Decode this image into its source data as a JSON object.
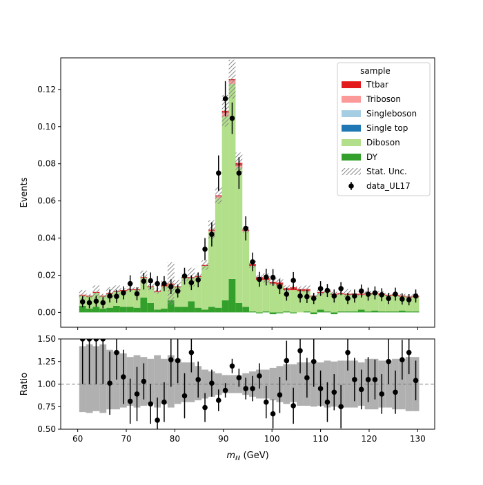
{
  "chart_data": {
    "type": "bar",
    "x_bin_centers": [
      61,
      62.4,
      63.8,
      65.2,
      66.6,
      68,
      69.4,
      70.8,
      72.2,
      73.6,
      75,
      76.4,
      77.8,
      79.2,
      80.6,
      82,
      83.4,
      84.8,
      86.2,
      87.6,
      89,
      90.4,
      91.8,
      93.2,
      94.6,
      96,
      97.4,
      98.8,
      100.2,
      101.6,
      103,
      104.4,
      105.8,
      107.2,
      108.6,
      110,
      111.4,
      112.8,
      114.2,
      115.6,
      117,
      118.4,
      119.8,
      121.2,
      122.6,
      124,
      125.4,
      126.8,
      128.2,
      129.6
    ],
    "bin_width": 1.4,
    "xlim": [
      56.5,
      133.5
    ],
    "colors": {
      "Ttbar": "#e31a1c",
      "Triboson": "#fb9a99",
      "Singleboson": "#a6cee3",
      "Single top": "#1f78b4",
      "Diboson": "#b2df8a",
      "DY": "#33a02c",
      "band": "#b0b0b0",
      "data": "#000000"
    },
    "top_panel": {
      "ylabel": "Events",
      "ylim": [
        -0.008,
        0.137
      ],
      "yticks": [
        "0.00",
        "0.02",
        "0.04",
        "0.06",
        "0.08",
        "0.10",
        "0.12"
      ],
      "ytick_values": [
        0,
        0.02,
        0.04,
        0.06,
        0.08,
        0.1,
        0.12
      ],
      "legend_title": "sample",
      "legend_position": "top-right",
      "legend_entries": [
        "Ttbar",
        "Triboson",
        "Singleboson",
        "Single top",
        "Diboson",
        "DY",
        "Stat. Unc.",
        "data_UL17"
      ],
      "dy": [
        0.0035,
        0.002,
        0.003,
        0.002,
        0.0025,
        0.0035,
        0.003,
        0.003,
        0.0025,
        0.008,
        0.005,
        0.0015,
        0.002,
        0.0065,
        0.003,
        0.003,
        0.006,
        0.0025,
        0.0015,
        0.003,
        0.0025,
        0.0065,
        0.018,
        0.005,
        0.003,
        0.0005,
        -0.0005,
        0.0005,
        -0.001,
        -0.0005,
        0.0005,
        -0.0005,
        0,
        0.0005,
        -0.001,
        0.0015,
        0.0005,
        -0.001,
        0.0005,
        0.0005,
        0.0005,
        0.0015,
        0.0005,
        0.001,
        0.0005,
        0.0005,
        0.0005,
        0.001,
        0.0005,
        0.0005
      ],
      "diboson": [
        0.0055,
        0.0065,
        0.0075,
        0.0065,
        0.0075,
        0.0075,
        0.0085,
        0.009,
        0.0095,
        0.0105,
        0.0085,
        0.0095,
        0.012,
        0.0085,
        0.0105,
        0.0155,
        0.0125,
        0.0165,
        0.0235,
        0.0405,
        0.059,
        0.099,
        0.105,
        0.073,
        0.0405,
        0.0245,
        0.018,
        0.017,
        0.0165,
        0.015,
        0.0115,
        0.0125,
        0.0115,
        0.011,
        0.0095,
        0.009,
        0.0105,
        0.0105,
        0.0095,
        0.009,
        0.009,
        0.008,
        0.0095,
        0.009,
        0.009,
        0.0085,
        0.0085,
        0.0075,
        0.0075,
        0.008
      ],
      "ttbar": [
        0.0005,
        0.0005,
        0.0005,
        0.0005,
        0.0005,
        0.0005,
        0.0005,
        0.0005,
        0.0005,
        0.0005,
        0.0005,
        0.0005,
        0.001,
        0.0005,
        0.0005,
        0.0005,
        0.0005,
        0.0005,
        0.0005,
        0.0005,
        0.0005,
        0.001,
        0.0005,
        0.0015,
        0.0005,
        0.001,
        0.0015,
        0.001,
        0.001,
        0.0015,
        0.001,
        0.0015,
        0.001,
        0.001,
        0.0005,
        0.0005,
        0.0005,
        0.0005,
        0.0005,
        0.0005,
        0.0005,
        0.0005,
        0.0005,
        0.0005,
        0.0005,
        0.0005,
        0.0005,
        0.0005,
        0.0005,
        0.0005
      ],
      "triboson": [
        0,
        0,
        0,
        0,
        0,
        0,
        0,
        0,
        0,
        0,
        0,
        0,
        0,
        0,
        0,
        0,
        0,
        0,
        0,
        0.0005,
        0.001,
        0.002,
        0.002,
        0.001,
        0.0005,
        0,
        0,
        0,
        0,
        0,
        0,
        0,
        0,
        0,
        0,
        0,
        0,
        0,
        0,
        0,
        0,
        0,
        0,
        0,
        0,
        0,
        0,
        0,
        0,
        0
      ],
      "stat_unc": [
        0.0025,
        0.001,
        0.0035,
        0.001,
        0.003,
        0.003,
        0.001,
        0.0015,
        0.001,
        0.0035,
        0.002,
        0.0015,
        0.002,
        0.0115,
        0.0035,
        0.002,
        0.005,
        0.0015,
        0.0025,
        0.005,
        0.0045,
        0.0085,
        0.0105,
        0.0055,
        0.0015,
        0.002,
        0.001,
        0.0025,
        0.002,
        0.0025,
        0.0015,
        0.001,
        0.0015,
        0.002,
        0.001,
        0.0015,
        0.0015,
        0.001,
        0.001,
        0.0025,
        0.0005,
        0.0015,
        0.001,
        0.001,
        0.0015,
        0.001,
        0.001,
        0.001,
        0.0005,
        0.001
      ],
      "data_y": [
        0.0057,
        0.0052,
        0.006,
        0.0052,
        0.0088,
        0.0086,
        0.0105,
        0.0155,
        0.01,
        0.0168,
        0.017,
        0.0155,
        0.0155,
        0.0138,
        0.0115,
        0.0195,
        0.016,
        0.0175,
        0.034,
        0.042,
        0.075,
        0.115,
        0.1045,
        0.075,
        0.0452,
        0.0272,
        0.0178,
        0.019,
        0.0188,
        0.0138,
        0.0098,
        0.0172,
        0.0088,
        0.0085,
        0.0075,
        0.0128,
        0.0118,
        0.0088,
        0.0128,
        0.0075,
        0.0088,
        0.0115,
        0.0098,
        0.0105,
        0.0095,
        0.0075,
        0.0098,
        0.0072,
        0.0068,
        0.0088
      ],
      "data_err": [
        0.003,
        0.003,
        0.003,
        0.003,
        0.0035,
        0.0035,
        0.0035,
        0.0045,
        0.0035,
        0.0045,
        0.0045,
        0.004,
        0.004,
        0.004,
        0.0035,
        0.0045,
        0.004,
        0.004,
        0.006,
        0.0065,
        0.0095,
        0.0095,
        0.0085,
        0.0085,
        0.0065,
        0.005,
        0.004,
        0.0045,
        0.0045,
        0.004,
        0.0035,
        0.0045,
        0.0035,
        0.0035,
        0.003,
        0.004,
        0.0035,
        0.0035,
        0.0035,
        0.003,
        0.0035,
        0.0035,
        0.0035,
        0.0035,
        0.0035,
        0.003,
        0.0035,
        0.003,
        0.003,
        0.0035
      ]
    },
    "ratio_panel": {
      "ylabel": "Ratio",
      "ylim": [
        0.5,
        1.5
      ],
      "yticks": [
        "0.50",
        "0.75",
        "1.00",
        "1.25",
        "1.50"
      ],
      "ytick_values": [
        0.5,
        0.75,
        1.0,
        1.25,
        1.5
      ],
      "band_lo": [
        0.69,
        0.68,
        0.7,
        0.68,
        0.72,
        0.72,
        0.74,
        0.76,
        0.74,
        0.76,
        0.78,
        0.74,
        0.78,
        0.74,
        0.78,
        0.8,
        0.8,
        0.82,
        0.84,
        0.86,
        0.88,
        0.9,
        0.9,
        0.9,
        0.88,
        0.86,
        0.84,
        0.84,
        0.82,
        0.8,
        0.78,
        0.8,
        0.76,
        0.76,
        0.75,
        0.76,
        0.74,
        0.75,
        0.74,
        0.74,
        0.74,
        0.76,
        0.72,
        0.72,
        0.74,
        0.74,
        0.72,
        0.72,
        0.7,
        0.7
      ],
      "band_hi": [
        1.42,
        1.44,
        1.42,
        1.44,
        1.38,
        1.36,
        1.34,
        1.3,
        1.32,
        1.3,
        1.28,
        1.32,
        1.28,
        1.32,
        1.28,
        1.24,
        1.24,
        1.2,
        1.16,
        1.14,
        1.12,
        1.1,
        1.1,
        1.1,
        1.12,
        1.14,
        1.16,
        1.16,
        1.18,
        1.2,
        1.22,
        1.22,
        1.24,
        1.24,
        1.25,
        1.24,
        1.26,
        1.25,
        1.26,
        1.26,
        1.26,
        1.24,
        1.28,
        1.28,
        1.26,
        1.26,
        1.28,
        1.28,
        1.3,
        1.3
      ],
      "ratio_y": [
        1.5,
        1.5,
        1.5,
        1.5,
        1.01,
        1.35,
        1.08,
        0.81,
        0.89,
        1.03,
        0.78,
        0.6,
        0.8,
        1.27,
        1.26,
        0.87,
        1.35,
        1.05,
        0.74,
        1.01,
        0.82,
        0.93,
        1.2,
        1.07,
        0.95,
        0.95,
        1.09,
        0.8,
        0.67,
        0.88,
        1.26,
        0.76,
        1.37,
        1.07,
        1.25,
        0.95,
        0.8,
        0.91,
        0.75,
        1.35,
        1.05,
        0.94,
        1.05,
        1.05,
        0.89,
        1.25,
        0.91,
        1.27,
        1.35,
        1.04
      ],
      "ratio_err": [
        0.5,
        0.5,
        0.5,
        0.5,
        0.35,
        0.3,
        0.3,
        0.25,
        0.3,
        0.2,
        0.22,
        0.25,
        0.22,
        0.3,
        0.25,
        0.25,
        0.22,
        0.2,
        0.16,
        0.15,
        0.12,
        0.08,
        0.08,
        0.1,
        0.12,
        0.14,
        0.14,
        0.18,
        0.16,
        0.2,
        0.22,
        0.2,
        0.25,
        0.22,
        0.28,
        0.2,
        0.22,
        0.2,
        0.24,
        0.2,
        0.24,
        0.22,
        0.25,
        0.22,
        0.22,
        0.25,
        0.24,
        0.22,
        0.24,
        0.22
      ]
    },
    "xlabel_text": " (GeV)",
    "xlabel_var": "m",
    "xlabel_sub": "ℓℓ",
    "xticks": [
      "60",
      "70",
      "80",
      "90",
      "100",
      "110",
      "120",
      "130"
    ],
    "xtick_values": [
      60,
      70,
      80,
      90,
      100,
      110,
      120,
      130
    ]
  }
}
